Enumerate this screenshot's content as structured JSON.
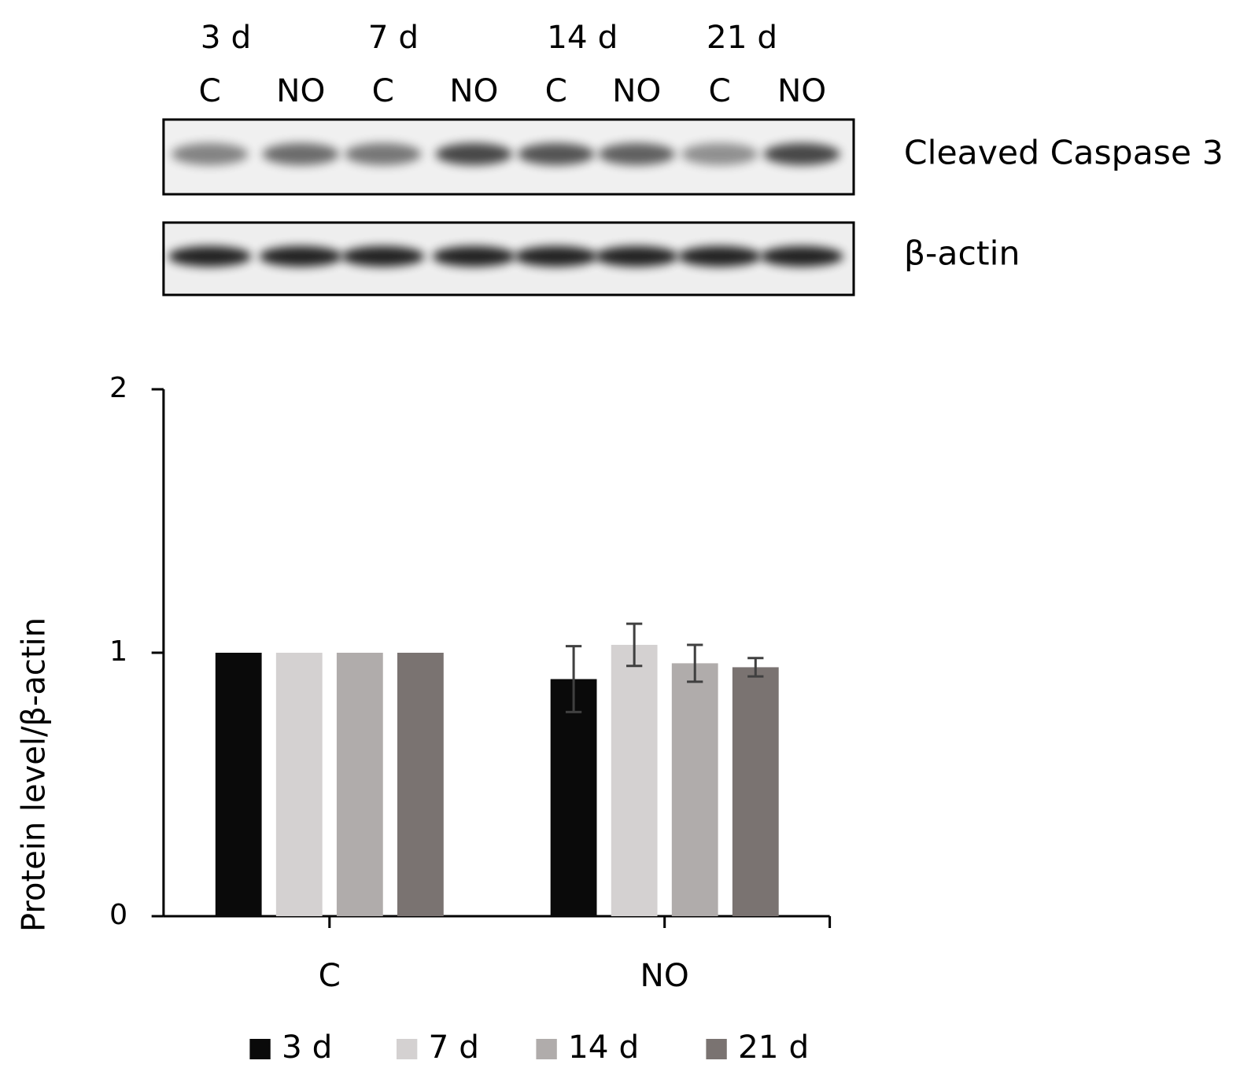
{
  "blot": {
    "time_labels": [
      "3 d",
      "7 d",
      "14 d",
      "21 d"
    ],
    "lane_labels": [
      "C",
      "NO",
      "C",
      "NO",
      "C",
      "NO",
      "C",
      "NO"
    ],
    "row_labels": [
      "Cleaved Caspase 3",
      "β-actin"
    ]
  },
  "chart_data": {
    "type": "bar",
    "y_label": "Protein level/β-actin",
    "categories": [
      "C",
      "NO"
    ],
    "series": [
      {
        "name": "3 d",
        "color": "#0a0a0a",
        "values": [
          1,
          0.9
        ],
        "errors": [
          null,
          0.125
        ]
      },
      {
        "name": "7 d",
        "color": "#d4d1d1",
        "values": [
          1,
          1.03
        ],
        "errors": [
          null,
          0.08
        ]
      },
      {
        "name": "14 d",
        "color": "#b0acab",
        "values": [
          1,
          0.96
        ],
        "errors": [
          null,
          0.07
        ]
      },
      {
        "name": "21 d",
        "color": "#7a7371",
        "values": [
          1,
          0.945
        ],
        "errors": [
          null,
          0.035
        ]
      }
    ],
    "ylim": [
      0,
      2
    ],
    "yticks": [
      0,
      1,
      2
    ],
    "legend": "bottom"
  }
}
